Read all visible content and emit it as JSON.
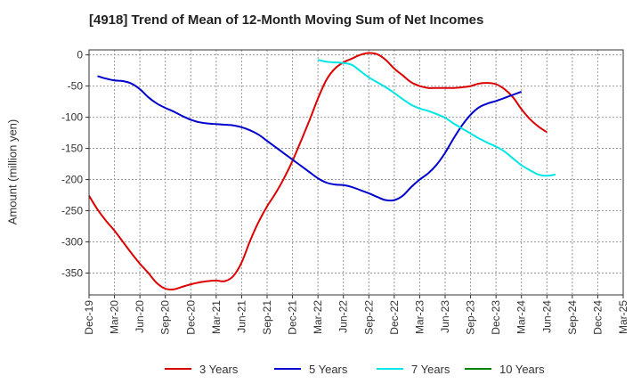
{
  "title": "[4918]  Trend of Mean of 12-Month Moving Sum of Net Incomes",
  "chart_data": {
    "type": "line",
    "title": "[4918]  Trend of Mean of 12-Month Moving Sum of Net Incomes",
    "ylabel": "Amount (million yen)",
    "xlabel": "",
    "ylim": [
      -385,
      8
    ],
    "yticks": [
      0,
      -50,
      -100,
      -150,
      -200,
      -250,
      -300,
      -350
    ],
    "x_tick_labels": [
      "Dec-19",
      "Mar-20",
      "Jun-20",
      "Sep-20",
      "Dec-20",
      "Mar-21",
      "Jun-21",
      "Sep-21",
      "Dec-21",
      "Mar-22",
      "Jun-22",
      "Sep-22",
      "Dec-22",
      "Mar-23",
      "Jun-23",
      "Sep-23",
      "Dec-23",
      "Mar-24",
      "Jun-24",
      "Sep-24",
      "Dec-24",
      "Mar-25"
    ],
    "x_start": "2019-12",
    "grid": true,
    "legend_position": "bottom",
    "series": [
      {
        "name": "3 Years",
        "color": "#dd0000",
        "points": [
          [
            "2019-12",
            -226
          ],
          [
            "2020-01",
            -248
          ],
          [
            "2020-02",
            -266
          ],
          [
            "2020-03",
            -282
          ],
          [
            "2020-04",
            -300
          ],
          [
            "2020-05",
            -318
          ],
          [
            "2020-06",
            -335
          ],
          [
            "2020-07",
            -350
          ],
          [
            "2020-08",
            -366
          ],
          [
            "2020-09",
            -375
          ],
          [
            "2020-10",
            -376
          ],
          [
            "2020-11",
            -372
          ],
          [
            "2020-12",
            -368
          ],
          [
            "2021-01",
            -365
          ],
          [
            "2021-02",
            -363
          ],
          [
            "2021-03",
            -362
          ],
          [
            "2021-04",
            -363
          ],
          [
            "2021-05",
            -355
          ],
          [
            "2021-06",
            -333
          ],
          [
            "2021-07",
            -298
          ],
          [
            "2021-08",
            -268
          ],
          [
            "2021-09",
            -243
          ],
          [
            "2021-10",
            -222
          ],
          [
            "2021-11",
            -198
          ],
          [
            "2021-12",
            -170
          ],
          [
            "2022-01",
            -138
          ],
          [
            "2022-02",
            -105
          ],
          [
            "2022-03",
            -70
          ],
          [
            "2022-04",
            -40
          ],
          [
            "2022-05",
            -22
          ],
          [
            "2022-06",
            -12
          ],
          [
            "2022-07",
            -6
          ],
          [
            "2022-08",
            0
          ],
          [
            "2022-09",
            3
          ],
          [
            "2022-10",
            1
          ],
          [
            "2022-11",
            -8
          ],
          [
            "2022-12",
            -22
          ],
          [
            "2023-01",
            -33
          ],
          [
            "2023-02",
            -44
          ],
          [
            "2023-03",
            -50
          ],
          [
            "2023-04",
            -53
          ],
          [
            "2023-05",
            -53
          ],
          [
            "2023-06",
            -53
          ],
          [
            "2023-07",
            -53
          ],
          [
            "2023-08",
            -52
          ],
          [
            "2023-09",
            -50
          ],
          [
            "2023-10",
            -46
          ],
          [
            "2023-11",
            -45
          ],
          [
            "2023-12",
            -47
          ],
          [
            "2024-01",
            -55
          ],
          [
            "2024-02",
            -68
          ],
          [
            "2024-03",
            -87
          ],
          [
            "2024-04",
            -103
          ],
          [
            "2024-05",
            -115
          ],
          [
            "2024-06",
            -124
          ]
        ]
      },
      {
        "name": "5 Years",
        "color": "#0000cc",
        "points": [
          [
            "2020-01",
            -34
          ],
          [
            "2020-02",
            -38
          ],
          [
            "2020-03",
            -41
          ],
          [
            "2020-04",
            -42
          ],
          [
            "2020-05",
            -46
          ],
          [
            "2020-06",
            -55
          ],
          [
            "2020-07",
            -68
          ],
          [
            "2020-08",
            -78
          ],
          [
            "2020-09",
            -85
          ],
          [
            "2020-10",
            -91
          ],
          [
            "2020-11",
            -98
          ],
          [
            "2020-12",
            -104
          ],
          [
            "2021-01",
            -108
          ],
          [
            "2021-02",
            -110
          ],
          [
            "2021-03",
            -111
          ],
          [
            "2021-04",
            -112
          ],
          [
            "2021-05",
            -113
          ],
          [
            "2021-06",
            -116
          ],
          [
            "2021-07",
            -121
          ],
          [
            "2021-08",
            -128
          ],
          [
            "2021-09",
            -138
          ],
          [
            "2021-10",
            -148
          ],
          [
            "2021-11",
            -158
          ],
          [
            "2021-12",
            -168
          ],
          [
            "2022-01",
            -178
          ],
          [
            "2022-02",
            -188
          ],
          [
            "2022-03",
            -198
          ],
          [
            "2022-04",
            -205
          ],
          [
            "2022-05",
            -208
          ],
          [
            "2022-06",
            -209
          ],
          [
            "2022-07",
            -212
          ],
          [
            "2022-08",
            -217
          ],
          [
            "2022-09",
            -222
          ],
          [
            "2022-10",
            -228
          ],
          [
            "2022-11",
            -233
          ],
          [
            "2022-12",
            -233
          ],
          [
            "2023-01",
            -226
          ],
          [
            "2023-02",
            -212
          ],
          [
            "2023-03",
            -200
          ],
          [
            "2023-04",
            -190
          ],
          [
            "2023-05",
            -176
          ],
          [
            "2023-06",
            -157
          ],
          [
            "2023-07",
            -134
          ],
          [
            "2023-08",
            -113
          ],
          [
            "2023-09",
            -96
          ],
          [
            "2023-10",
            -84
          ],
          [
            "2023-11",
            -78
          ],
          [
            "2023-12",
            -74
          ],
          [
            "2024-01",
            -69
          ],
          [
            "2024-02",
            -64
          ],
          [
            "2024-03",
            -59
          ]
        ]
      },
      {
        "name": "7 Years",
        "color": "#00e5e5",
        "points": [
          [
            "2022-03",
            -8
          ],
          [
            "2022-04",
            -11
          ],
          [
            "2022-05",
            -12
          ],
          [
            "2022-06",
            -13
          ],
          [
            "2022-07",
            -16
          ],
          [
            "2022-08",
            -26
          ],
          [
            "2022-09",
            -36
          ],
          [
            "2022-10",
            -44
          ],
          [
            "2022-11",
            -52
          ],
          [
            "2022-12",
            -61
          ],
          [
            "2023-01",
            -71
          ],
          [
            "2023-02",
            -80
          ],
          [
            "2023-03",
            -86
          ],
          [
            "2023-04",
            -90
          ],
          [
            "2023-05",
            -95
          ],
          [
            "2023-06",
            -101
          ],
          [
            "2023-07",
            -110
          ],
          [
            "2023-08",
            -118
          ],
          [
            "2023-09",
            -126
          ],
          [
            "2023-10",
            -134
          ],
          [
            "2023-11",
            -141
          ],
          [
            "2023-12",
            -147
          ],
          [
            "2024-01",
            -155
          ],
          [
            "2024-02",
            -166
          ],
          [
            "2024-03",
            -177
          ],
          [
            "2024-04",
            -185
          ],
          [
            "2024-05",
            -192
          ],
          [
            "2024-06",
            -194
          ],
          [
            "2024-07",
            -192
          ]
        ]
      },
      {
        "name": "10 Years",
        "color": "#008000",
        "points": []
      }
    ]
  }
}
